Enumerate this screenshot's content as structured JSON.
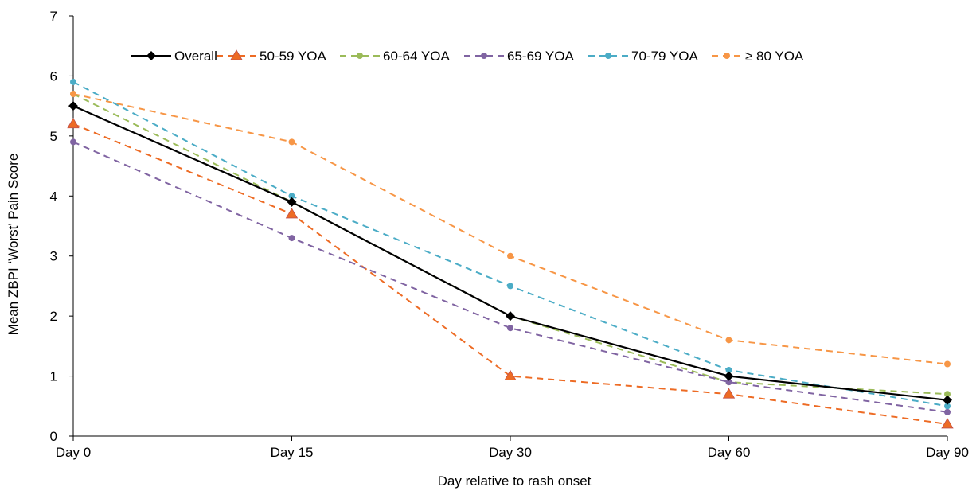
{
  "chart_data": {
    "type": "line",
    "title": "",
    "xlabel": "Day relative to rash onset",
    "ylabel": "Mean ZBPI ‘Worst’ Pain Score",
    "categories": [
      "Day 0",
      "Day 15",
      "Day 30",
      "Day 60",
      "Day 90"
    ],
    "y_ticks": [
      "0",
      "1",
      "2",
      "3",
      "4",
      "5",
      "6",
      "7"
    ],
    "ylim": [
      0,
      7
    ],
    "grid": false,
    "legend_position": "top",
    "series": [
      {
        "name": "Overall",
        "values": [
          5.5,
          3.9,
          2.0,
          1.0,
          0.6
        ],
        "color": "#000000",
        "line": "solid",
        "marker": "diamond"
      },
      {
        "name": "50-59 YOA",
        "values": [
          5.2,
          3.7,
          1.0,
          0.7,
          0.2
        ],
        "color": "#ED6B24",
        "line": "dashed",
        "marker": "triangle"
      },
      {
        "name": "60-64 YOA",
        "values": [
          5.7,
          3.9,
          2.0,
          0.9,
          0.7
        ],
        "color": "#9BBB59",
        "line": "dashed",
        "marker": "circle"
      },
      {
        "name": "65-69 YOA",
        "values": [
          4.9,
          3.3,
          1.8,
          0.9,
          0.4
        ],
        "color": "#8064A2",
        "line": "dashed",
        "marker": "circle"
      },
      {
        "name": "70-79 YOA",
        "values": [
          5.9,
          4.0,
          2.5,
          1.1,
          0.5
        ],
        "color": "#4BACC6",
        "line": "dashed",
        "marker": "circle"
      },
      {
        "name": "≥ 80 YOA",
        "values": [
          5.7,
          4.9,
          3.0,
          1.6,
          1.2
        ],
        "color": "#F79646",
        "line": "dashed",
        "marker": "circle"
      }
    ]
  }
}
